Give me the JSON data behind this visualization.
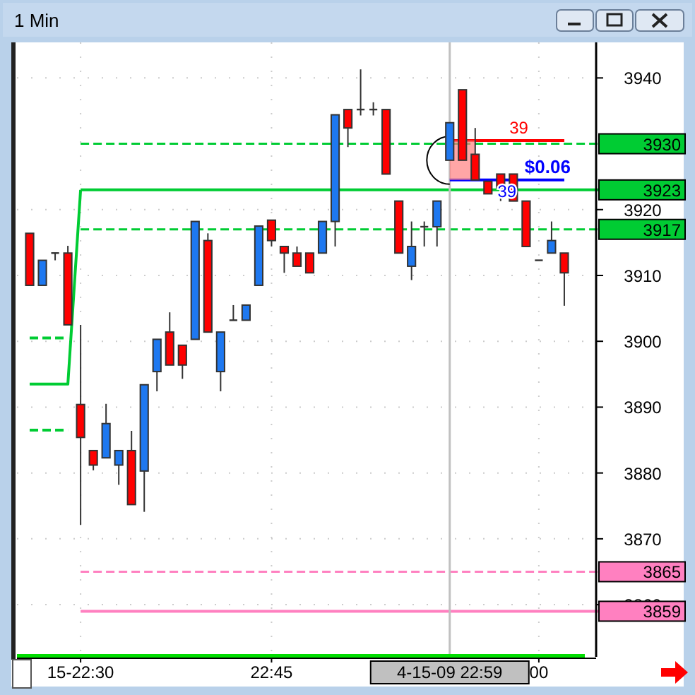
{
  "chart_data": {
    "type": "candlestick",
    "title": "1 Min",
    "categories": [
      null,
      null,
      null,
      null,
      "15-22:30",
      null,
      null,
      null,
      null,
      null,
      null,
      null,
      null,
      null,
      null,
      null,
      null,
      null,
      null,
      "22:45",
      null,
      null,
      null,
      null,
      null,
      null,
      null,
      null,
      null,
      null,
      null,
      null,
      null,
      "4-15-09 22:59",
      null,
      null,
      null,
      null,
      null,
      null,
      "00",
      null,
      null
    ],
    "ohlc": [
      [
        3916.4,
        3916.4,
        3908.5,
        3908.5
      ],
      [
        3908.5,
        3912.3,
        3908.5,
        3912.3
      ],
      [
        3913.4,
        3913.4,
        3912.3,
        3913.4
      ],
      [
        3913.4,
        3914.5,
        3902.5,
        3902.5
      ],
      [
        3890.4,
        3902.5,
        3872.1,
        3885.4
      ],
      [
        3883.4,
        3883.4,
        3880.4,
        3881.2
      ],
      [
        3882.3,
        3890.5,
        3882.3,
        3887.5
      ],
      [
        3881.2,
        3883.4,
        3878.2,
        3883.4
      ],
      [
        3883.4,
        3886.4,
        3875.2,
        3875.2
      ],
      [
        3880.3,
        3893.4,
        3874.1,
        3893.4
      ],
      [
        3895.4,
        3900.3,
        3892.4,
        3900.3
      ],
      [
        3901.4,
        3904.4,
        3896.4,
        3896.4
      ],
      [
        3899.4,
        3899.4,
        3894.3,
        3896.4
      ],
      [
        3900.3,
        3918.2,
        3900.3,
        3918.2
      ],
      [
        3915.3,
        3916.4,
        3901.4,
        3901.4
      ],
      [
        3895.4,
        3901.4,
        3892.4,
        3901.4
      ],
      [
        3903.2,
        3905.5,
        3903.2,
        3903.2
      ],
      [
        3903.2,
        3905.5,
        3903.2,
        3905.5
      ],
      [
        3908.5,
        3917.5,
        3908.5,
        3917.5
      ],
      [
        3918.4,
        3918.4,
        3914.4,
        3915.3
      ],
      [
        3914.4,
        3914.4,
        3910.4,
        3913.4
      ],
      [
        3913.4,
        3914.4,
        3911.4,
        3911.4
      ],
      [
        3913.4,
        3913.4,
        3910.4,
        3910.4
      ],
      [
        3913.4,
        3918.2,
        3913.4,
        3918.2
      ],
      [
        3918.2,
        3934.4,
        3914.4,
        3934.4
      ],
      [
        3935.2,
        3935.2,
        3929.5,
        3932.4
      ],
      [
        3935.2,
        3941.3,
        3934.3,
        3935.2
      ],
      [
        3935.2,
        3936.3,
        3934.3,
        3935.2
      ],
      [
        3935.2,
        3935.2,
        3925.4,
        3925.4
      ],
      [
        3921.3,
        3921.3,
        3913.4,
        3913.4
      ],
      [
        3911.4,
        3918.2,
        3909.3,
        3914.4
      ],
      [
        3917.4,
        3918.2,
        3914.4,
        3917.4
      ],
      [
        3917.4,
        3921.3,
        3914.4,
        3921.3
      ],
      [
        3927.5,
        3933.2,
        3927.5,
        3933.2
      ],
      [
        3938.2,
        3938.2,
        3927.5,
        3927.5
      ],
      [
        3928.4,
        3932.4,
        3924.5,
        3924.5
      ],
      [
        3924.3,
        3924.3,
        3922.4,
        3922.4
      ],
      [
        3925.4,
        3925.4,
        3921.3,
        3923.3
      ],
      [
        3925.4,
        3925.4,
        3921.3,
        3921.3
      ],
      [
        3921.3,
        3921.3,
        3914.4,
        3914.4
      ],
      [
        3912.3,
        3912.3,
        3912.3,
        3912.3
      ],
      [
        3913.4,
        3918.2,
        3913.4,
        3915.3
      ],
      [
        3913.4,
        3913.4,
        3905.4,
        3910.4
      ]
    ],
    "colors": [
      "#ff0000",
      "#1e78f0",
      "#333333",
      "#ff0000",
      "#ff0000",
      "#ff0000",
      "#1e78f0",
      "#1e78f0",
      "#ff0000",
      "#1e78f0",
      "#1e78f0",
      "#ff0000",
      "#ff0000",
      "#1e78f0",
      "#ff0000",
      "#1e78f0",
      "#333333",
      "#1e78f0",
      "#1e78f0",
      "#ff0000",
      "#ff0000",
      "#ff0000",
      "#ff0000",
      "#1e78f0",
      "#1e78f0",
      "#ff0000",
      "#333333",
      "#333333",
      "#ff0000",
      "#ff0000",
      "#1e78f0",
      "#333333",
      "#1e78f0",
      "#1e78f0",
      "#ff0000",
      "#ff0000",
      "#ff0000",
      "#ff0000",
      "#ff0000",
      "#ff0000",
      "#333333",
      "#1e78f0",
      "#ff0000"
    ],
    "series": [
      {
        "type": "line",
        "values": [
          3893.5,
          3893.5,
          3893.5,
          3893.5,
          3923,
          null,
          null,
          null,
          null,
          null,
          null,
          null,
          null,
          null,
          null,
          null,
          null,
          null,
          null,
          null,
          null,
          null,
          null,
          null,
          null,
          null,
          null,
          null,
          null,
          null,
          null,
          null,
          null,
          null,
          null,
          null,
          null,
          null,
          null,
          null,
          null,
          null,
          null
        ],
        "color": "#00cc33"
      },
      {
        "type": "line",
        "line_style": "dashed",
        "values": [
          3900.5,
          3900.5,
          3900.5,
          3900.5,
          null,
          null,
          null,
          null,
          null,
          null,
          null,
          null,
          null,
          null,
          null,
          null,
          null,
          null,
          null,
          null,
          null,
          null,
          null,
          null,
          null,
          null,
          null,
          null,
          null,
          null,
          null,
          null,
          null,
          null,
          null,
          null,
          null,
          null,
          null,
          null,
          null,
          null,
          null
        ],
        "color": "#00cc33"
      },
      {
        "type": "line",
        "line_style": "dashed",
        "values": [
          3886.5,
          3886.5,
          3886.5,
          3886.5,
          null,
          null,
          null,
          null,
          null,
          null,
          null,
          null,
          null,
          null,
          null,
          null,
          null,
          null,
          null,
          null,
          null,
          null,
          null,
          null,
          null,
          null,
          null,
          null,
          null,
          null,
          null,
          null,
          null,
          null,
          null,
          null,
          null,
          null,
          null,
          null,
          null,
          null,
          null
        ],
        "color": "#00cc33"
      },
      {
        "type": "line",
        "name": "39",
        "values": [
          null,
          null,
          null,
          null,
          null,
          null,
          null,
          null,
          null,
          null,
          null,
          null,
          null,
          null,
          null,
          null,
          null,
          null,
          null,
          null,
          null,
          null,
          null,
          null,
          null,
          null,
          null,
          null,
          null,
          null,
          null,
          null,
          null,
          3930.5,
          3930.5,
          3930.5,
          3930.5,
          3930.5,
          3930.5,
          3930.5,
          3930.5,
          3930.5,
          3930.5
        ],
        "color": "#ff0000"
      },
      {
        "type": "line",
        "name": "$0.06",
        "values": [
          null,
          null,
          null,
          null,
          null,
          null,
          null,
          null,
          null,
          null,
          null,
          null,
          null,
          null,
          null,
          null,
          null,
          null,
          null,
          null,
          null,
          null,
          null,
          null,
          null,
          null,
          null,
          null,
          null,
          null,
          null,
          null,
          null,
          3924.5,
          3924.5,
          3924.5,
          3924.5,
          3924.5,
          3924.5,
          3924.5,
          3924.5,
          3924.5,
          3924.5
        ],
        "color": "#0000ff"
      }
    ],
    "ref_lines": [
      {
        "axis": "y",
        "value": 3930,
        "label": "3930",
        "color": "#00cc33",
        "line_style": "dashed"
      },
      {
        "axis": "y",
        "value": 3923,
        "label": "3923",
        "color": "#00cc33",
        "line_style": "solid"
      },
      {
        "axis": "y",
        "value": 3917,
        "label": "3917",
        "color": "#00cc33",
        "line_style": "dashed"
      },
      {
        "axis": "y",
        "value": 3865,
        "label": "3865",
        "color": "#ff80c0",
        "line_style": "dashed"
      },
      {
        "axis": "y",
        "value": 3859,
        "label": "3859",
        "color": "#ff80c0",
        "line_style": "solid"
      },
      {
        "axis": "x",
        "value": "4-15-09 22:59",
        "color": "#c0c0c0",
        "line_style": "solid"
      }
    ],
    "annotations": [
      "39"
    ],
    "ylim": [
      3852.5,
      3945.4
    ],
    "yticks": [
      3860,
      3870,
      3880,
      3890,
      3900,
      3910,
      3920,
      3940
    ],
    "grid": true
  }
}
